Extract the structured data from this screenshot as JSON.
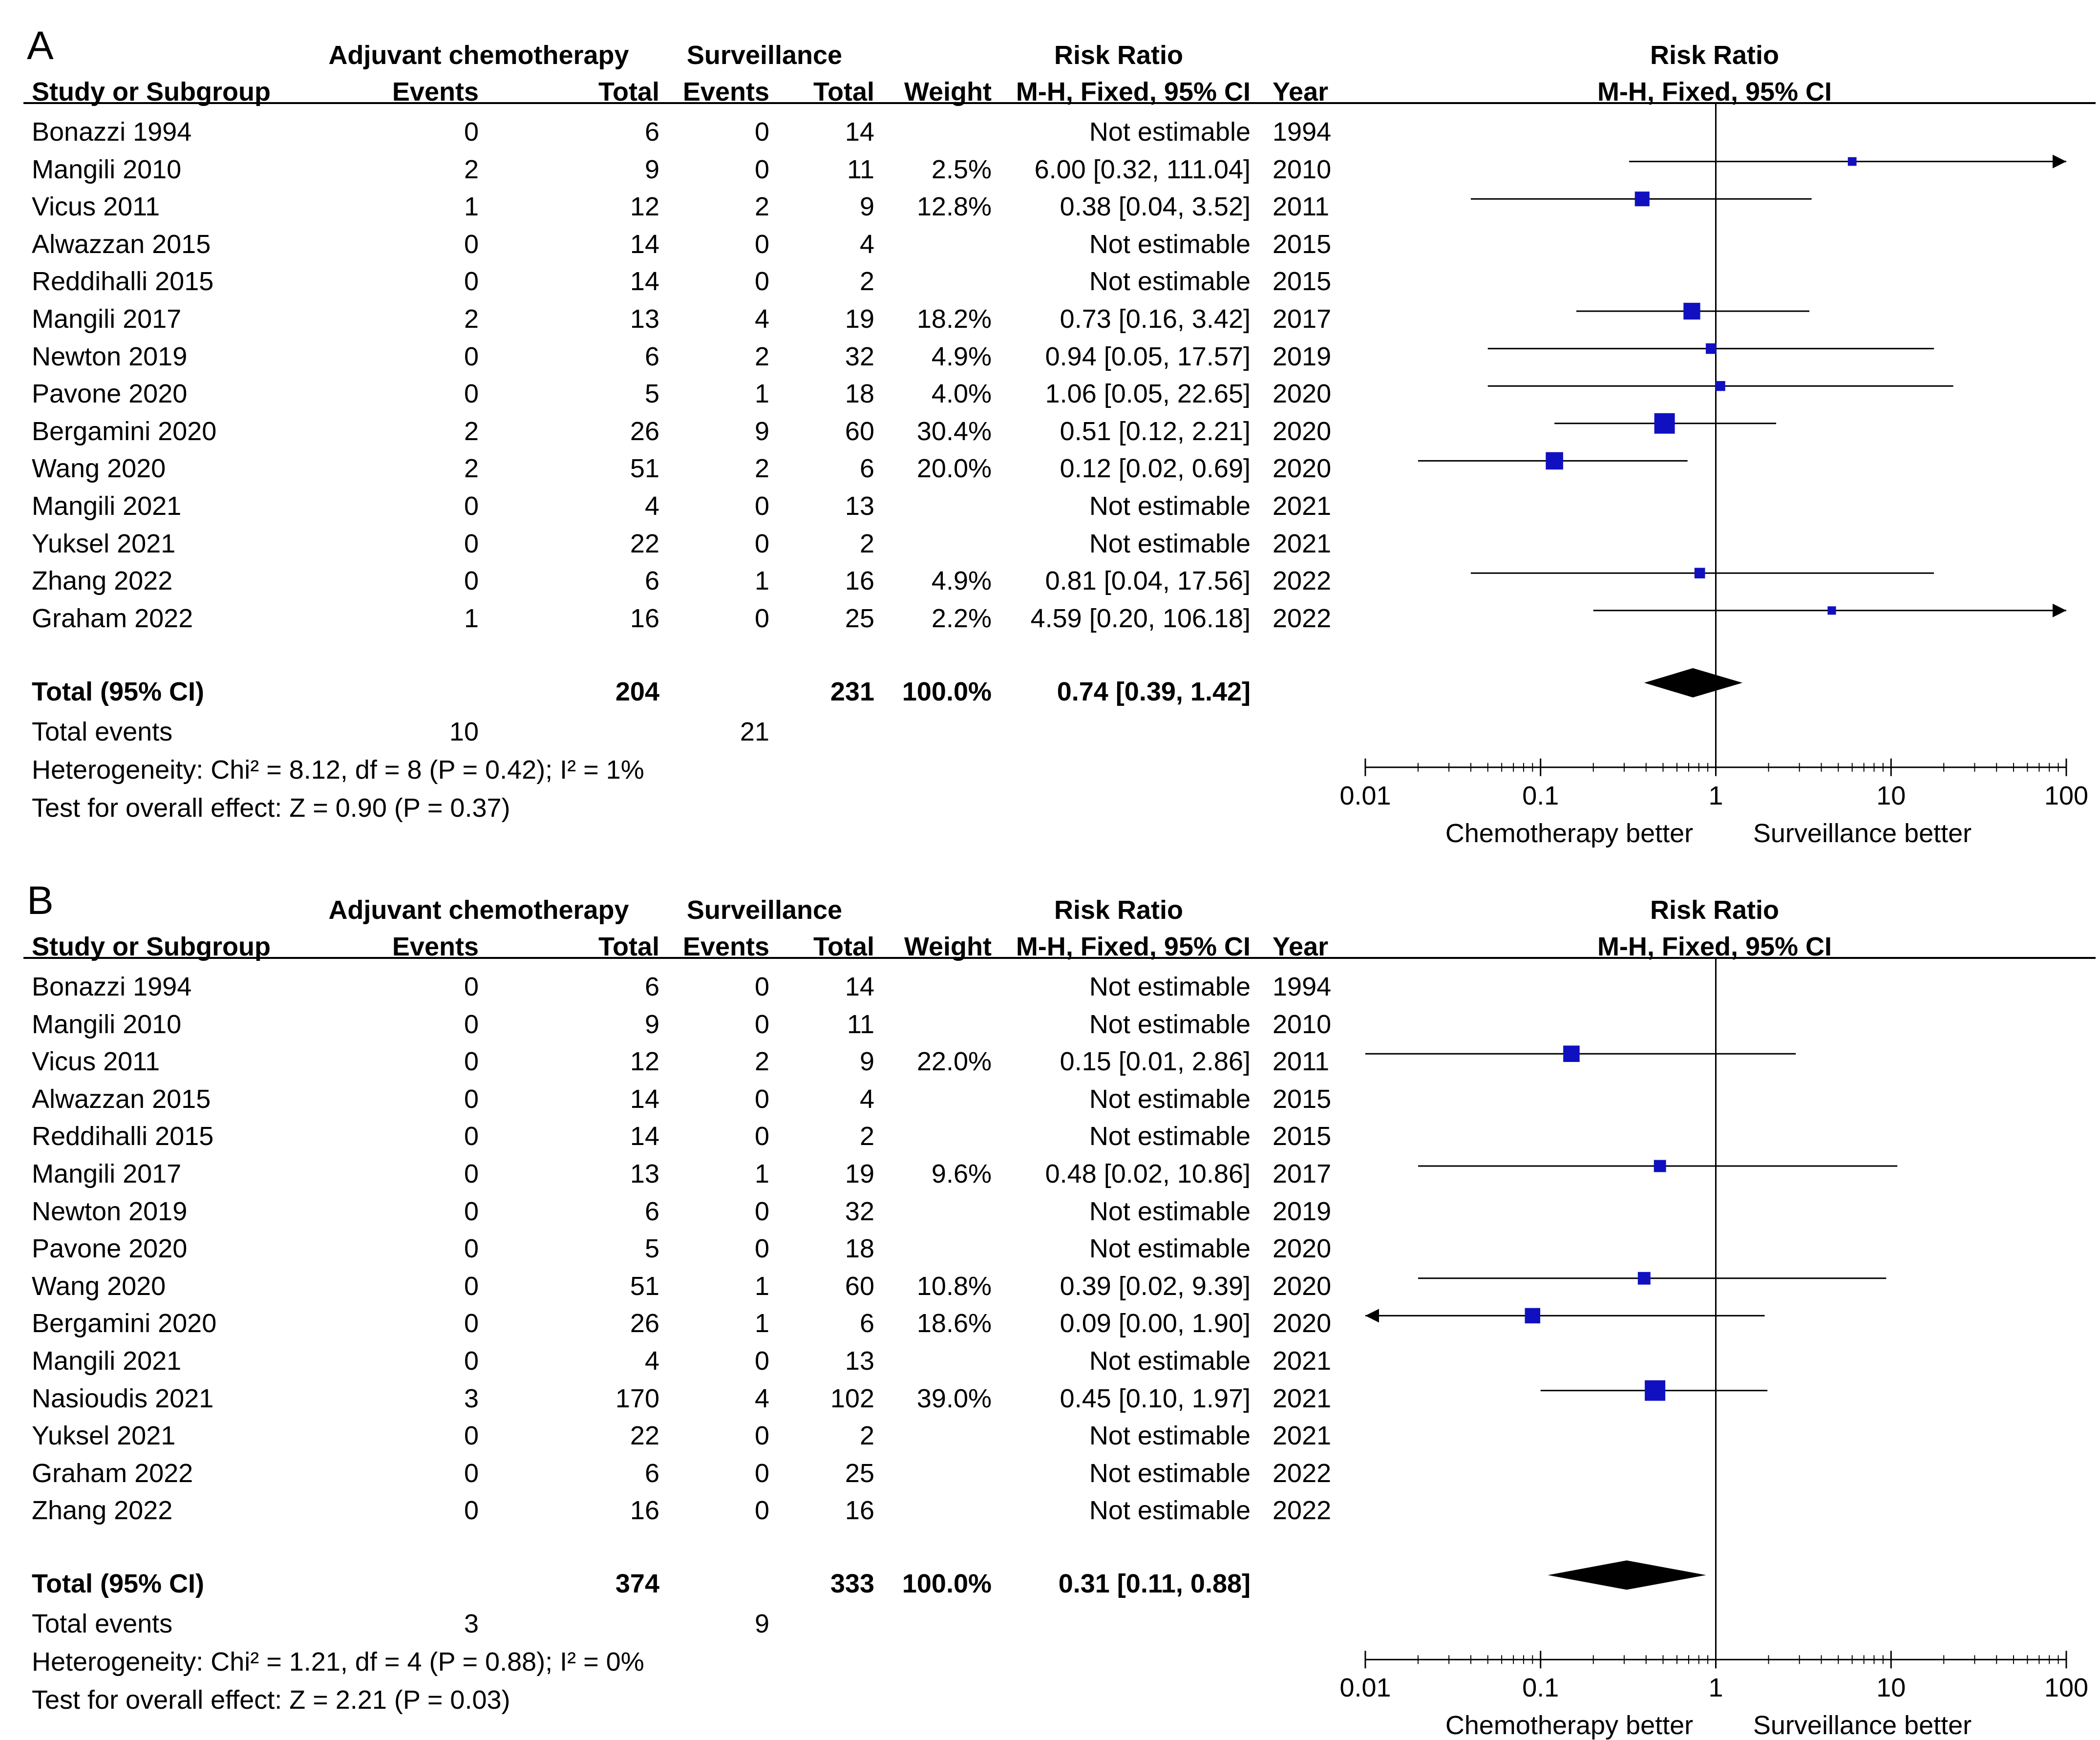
{
  "panels": [
    {
      "letter": "A",
      "headers": {
        "group1": "Adjuvant chemotherapy",
        "group2": "Surveillance",
        "rr": "Risk Ratio",
        "plot_title": "Risk Ratio",
        "study": "Study or Subgroup",
        "events1": "Events",
        "total1": "Total",
        "events2": "Events",
        "total2": "Total",
        "weight": "Weight",
        "method": "M-H, Fixed, 95% CI",
        "year": "Year",
        "plot_method": "M-H, Fixed, 95% CI"
      },
      "studies": [
        {
          "name": "Bonazzi 1994",
          "e1": "0",
          "n1": "6",
          "e2": "0",
          "n2": "14",
          "weight": "",
          "ci": "Not estimable",
          "year": "1994"
        },
        {
          "name": "Mangili 2010",
          "e1": "2",
          "n1": "9",
          "e2": "0",
          "n2": "11",
          "weight": "2.5%",
          "ci": "6.00 [0.32, 111.04]",
          "year": "2010"
        },
        {
          "name": "Vicus 2011",
          "e1": "1",
          "n1": "12",
          "e2": "2",
          "n2": "9",
          "weight": "12.8%",
          "ci": "0.38 [0.04, 3.52]",
          "year": "2011"
        },
        {
          "name": "Alwazzan 2015",
          "e1": "0",
          "n1": "14",
          "e2": "0",
          "n2": "4",
          "weight": "",
          "ci": "Not estimable",
          "year": "2015"
        },
        {
          "name": "Reddihalli 2015",
          "e1": "0",
          "n1": "14",
          "e2": "0",
          "n2": "2",
          "weight": "",
          "ci": "Not estimable",
          "year": "2015"
        },
        {
          "name": "Mangili 2017",
          "e1": "2",
          "n1": "13",
          "e2": "4",
          "n2": "19",
          "weight": "18.2%",
          "ci": "0.73 [0.16, 3.42]",
          "year": "2017"
        },
        {
          "name": "Newton 2019",
          "e1": "0",
          "n1": "6",
          "e2": "2",
          "n2": "32",
          "weight": "4.9%",
          "ci": "0.94 [0.05, 17.57]",
          "year": "2019"
        },
        {
          "name": "Pavone 2020",
          "e1": "0",
          "n1": "5",
          "e2": "1",
          "n2": "18",
          "weight": "4.0%",
          "ci": "1.06 [0.05, 22.65]",
          "year": "2020"
        },
        {
          "name": "Bergamini 2020",
          "e1": "2",
          "n1": "26",
          "e2": "9",
          "n2": "60",
          "weight": "30.4%",
          "ci": "0.51 [0.12, 2.21]",
          "year": "2020"
        },
        {
          "name": "Wang 2020",
          "e1": "2",
          "n1": "51",
          "e2": "2",
          "n2": "6",
          "weight": "20.0%",
          "ci": "0.12 [0.02, 0.69]",
          "year": "2020"
        },
        {
          "name": "Mangili 2021",
          "e1": "0",
          "n1": "4",
          "e2": "0",
          "n2": "13",
          "weight": "",
          "ci": "Not estimable",
          "year": "2021"
        },
        {
          "name": "Yuksel 2021",
          "e1": "0",
          "n1": "22",
          "e2": "0",
          "n2": "2",
          "weight": "",
          "ci": "Not estimable",
          "year": "2021"
        },
        {
          "name": "Zhang 2022",
          "e1": "0",
          "n1": "6",
          "e2": "1",
          "n2": "16",
          "weight": "4.9%",
          "ci": "0.81 [0.04, 17.56]",
          "year": "2022"
        },
        {
          "name": "Graham 2022",
          "e1": "1",
          "n1": "16",
          "e2": "0",
          "n2": "25",
          "weight": "2.2%",
          "ci": "4.59 [0.20, 106.18]",
          "year": "2022"
        }
      ],
      "total": {
        "label": "Total (95% CI)",
        "n1": "204",
        "n2": "231",
        "weight": "100.0%",
        "ci": "0.74 [0.39, 1.42]"
      },
      "total_events": {
        "label": "Total events",
        "e1": "10",
        "e2": "21"
      },
      "heterogeneity": "Heterogeneity: Chi² = 8.12, df = 8 (P = 0.42); I² = 1%",
      "overall_effect": "Test for overall effect: Z = 0.90 (P = 0.37)",
      "axis": {
        "ticks": [
          "0.01",
          "0.1",
          "1",
          "10",
          "100"
        ],
        "left_label": "Chemotherapy better",
        "right_label": "Surveillance better"
      }
    },
    {
      "letter": "B",
      "headers": {
        "group1": "Adjuvant chemotherapy",
        "group2": "Surveillance",
        "rr": "Risk Ratio",
        "plot_title": "Risk Ratio",
        "study": "Study or Subgroup",
        "events1": "Events",
        "total1": "Total",
        "events2": "Events",
        "total2": "Total",
        "weight": "Weight",
        "method": "M-H, Fixed, 95% CI",
        "year": "Year",
        "plot_method": "M-H, Fixed, 95% CI"
      },
      "studies": [
        {
          "name": "Bonazzi 1994",
          "e1": "0",
          "n1": "6",
          "e2": "0",
          "n2": "14",
          "weight": "",
          "ci": "Not estimable",
          "year": "1994"
        },
        {
          "name": "Mangili 2010",
          "e1": "0",
          "n1": "9",
          "e2": "0",
          "n2": "11",
          "weight": "",
          "ci": "Not estimable",
          "year": "2010"
        },
        {
          "name": "Vicus 2011",
          "e1": "0",
          "n1": "12",
          "e2": "2",
          "n2": "9",
          "weight": "22.0%",
          "ci": "0.15 [0.01, 2.86]",
          "year": "2011"
        },
        {
          "name": "Alwazzan 2015",
          "e1": "0",
          "n1": "14",
          "e2": "0",
          "n2": "4",
          "weight": "",
          "ci": "Not estimable",
          "year": "2015"
        },
        {
          "name": "Reddihalli 2015",
          "e1": "0",
          "n1": "14",
          "e2": "0",
          "n2": "2",
          "weight": "",
          "ci": "Not estimable",
          "year": "2015"
        },
        {
          "name": "Mangili 2017",
          "e1": "0",
          "n1": "13",
          "e2": "1",
          "n2": "19",
          "weight": "9.6%",
          "ci": "0.48 [0.02, 10.86]",
          "year": "2017"
        },
        {
          "name": "Newton 2019",
          "e1": "0",
          "n1": "6",
          "e2": "0",
          "n2": "32",
          "weight": "",
          "ci": "Not estimable",
          "year": "2019"
        },
        {
          "name": "Pavone 2020",
          "e1": "0",
          "n1": "5",
          "e2": "0",
          "n2": "18",
          "weight": "",
          "ci": "Not estimable",
          "year": "2020"
        },
        {
          "name": "Wang 2020",
          "e1": "0",
          "n1": "51",
          "e2": "1",
          "n2": "60",
          "weight": "10.8%",
          "ci": "0.39 [0.02, 9.39]",
          "year": "2020"
        },
        {
          "name": "Bergamini 2020",
          "e1": "0",
          "n1": "26",
          "e2": "1",
          "n2": "6",
          "weight": "18.6%",
          "ci": "0.09 [0.00, 1.90]",
          "year": "2020"
        },
        {
          "name": "Mangili 2021",
          "e1": "0",
          "n1": "4",
          "e2": "0",
          "n2": "13",
          "weight": "",
          "ci": "Not estimable",
          "year": "2021"
        },
        {
          "name": "Nasioudis 2021",
          "e1": "3",
          "n1": "170",
          "e2": "4",
          "n2": "102",
          "weight": "39.0%",
          "ci": "0.45 [0.10, 1.97]",
          "year": "2021"
        },
        {
          "name": "Yuksel 2021",
          "e1": "0",
          "n1": "22",
          "e2": "0",
          "n2": "2",
          "weight": "",
          "ci": "Not estimable",
          "year": "2021"
        },
        {
          "name": "Graham 2022",
          "e1": "0",
          "n1": "6",
          "e2": "0",
          "n2": "25",
          "weight": "",
          "ci": "Not estimable",
          "year": "2022"
        },
        {
          "name": "Zhang 2022",
          "e1": "0",
          "n1": "16",
          "e2": "0",
          "n2": "16",
          "weight": "",
          "ci": "Not estimable",
          "year": "2022"
        }
      ],
      "total": {
        "label": "Total (95% CI)",
        "n1": "374",
        "n2": "333",
        "weight": "100.0%",
        "ci": "0.31 [0.11, 0.88]"
      },
      "total_events": {
        "label": "Total events",
        "e1": "3",
        "e2": "9"
      },
      "heterogeneity": "Heterogeneity: Chi² = 1.21, df = 4 (P = 0.88); I² = 0%",
      "overall_effect": "Test for overall effect: Z = 2.21 (P = 0.03)",
      "axis": {
        "ticks": [
          "0.01",
          "0.1",
          "1",
          "10",
          "100"
        ],
        "left_label": "Chemotherapy better",
        "right_label": "Surveillance better"
      }
    }
  ],
  "colors": {
    "marker": "#1010c0",
    "line": "#000000"
  },
  "chart_data": [
    {
      "type": "forest",
      "title": "Risk Ratio",
      "scale": "log",
      "xlim": [
        0.01,
        100
      ],
      "xticks": [
        0.01,
        0.1,
        1,
        10,
        100
      ],
      "reference_line": 1,
      "xlabel_left": "Chemotherapy better",
      "xlabel_right": "Surveillance better",
      "points": [
        {
          "study": "Mangili 2010",
          "rr": 6.0,
          "lo": 0.32,
          "hi": 111.04,
          "weight": 2.5
        },
        {
          "study": "Vicus 2011",
          "rr": 0.38,
          "lo": 0.04,
          "hi": 3.52,
          "weight": 12.8
        },
        {
          "study": "Mangili 2017",
          "rr": 0.73,
          "lo": 0.16,
          "hi": 3.42,
          "weight": 18.2
        },
        {
          "study": "Newton 2019",
          "rr": 0.94,
          "lo": 0.05,
          "hi": 17.57,
          "weight": 4.9
        },
        {
          "study": "Pavone 2020",
          "rr": 1.06,
          "lo": 0.05,
          "hi": 22.65,
          "weight": 4.0
        },
        {
          "study": "Bergamini 2020",
          "rr": 0.51,
          "lo": 0.12,
          "hi": 2.21,
          "weight": 30.4
        },
        {
          "study": "Wang 2020",
          "rr": 0.12,
          "lo": 0.02,
          "hi": 0.69,
          "weight": 20.0
        },
        {
          "study": "Zhang 2022",
          "rr": 0.81,
          "lo": 0.04,
          "hi": 17.56,
          "weight": 4.9
        },
        {
          "study": "Graham 2022",
          "rr": 4.59,
          "lo": 0.2,
          "hi": 106.18,
          "weight": 2.2
        }
      ],
      "pooled": {
        "rr": 0.74,
        "lo": 0.39,
        "hi": 1.42
      }
    },
    {
      "type": "forest",
      "title": "Risk Ratio",
      "scale": "log",
      "xlim": [
        0.01,
        100
      ],
      "xticks": [
        0.01,
        0.1,
        1,
        10,
        100
      ],
      "reference_line": 1,
      "xlabel_left": "Chemotherapy better",
      "xlabel_right": "Surveillance better",
      "points": [
        {
          "study": "Vicus 2011",
          "rr": 0.15,
          "lo": 0.01,
          "hi": 2.86,
          "weight": 22.0
        },
        {
          "study": "Mangili 2017",
          "rr": 0.48,
          "lo": 0.02,
          "hi": 10.86,
          "weight": 9.6
        },
        {
          "study": "Wang 2020",
          "rr": 0.39,
          "lo": 0.02,
          "hi": 9.39,
          "weight": 10.8
        },
        {
          "study": "Bergamini 2020",
          "rr": 0.09,
          "lo": 0.0,
          "hi": 1.9,
          "weight": 18.6
        },
        {
          "study": "Nasioudis 2021",
          "rr": 0.45,
          "lo": 0.1,
          "hi": 1.97,
          "weight": 39.0
        }
      ],
      "pooled": {
        "rr": 0.31,
        "lo": 0.11,
        "hi": 0.88
      }
    }
  ]
}
